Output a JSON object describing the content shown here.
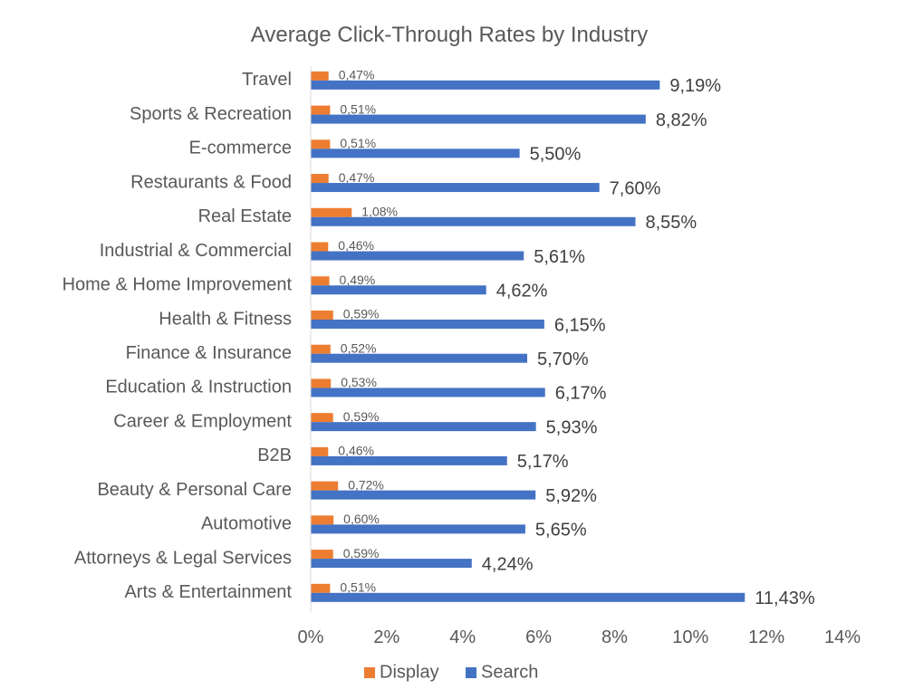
{
  "chart_data": {
    "type": "bar",
    "orientation": "horizontal",
    "title": "Average Click-Through Rates by Industry",
    "categories": [
      "Travel",
      "Sports & Recreation",
      "E-commerce",
      "Restaurants & Food",
      "Real Estate",
      "Industrial & Commercial",
      "Home & Home Improvement",
      "Health & Fitness",
      "Finance & Insurance",
      "Education & Instruction",
      "Career & Employment",
      "B2B",
      "Beauty & Personal Care",
      "Automotive",
      "Attorneys & Legal Services",
      "Arts & Entertainment"
    ],
    "series": [
      {
        "name": "Display",
        "color": "#ED7D31",
        "values": [
          0.47,
          0.51,
          0.51,
          0.47,
          1.08,
          0.46,
          0.49,
          0.59,
          0.52,
          0.53,
          0.59,
          0.46,
          0.72,
          0.6,
          0.59,
          0.51
        ],
        "labels": [
          "0,47%",
          "0,51%",
          "0,51%",
          "0,47%",
          "1,08%",
          "0,46%",
          "0,49%",
          "0,59%",
          "0,52%",
          "0,53%",
          "0,59%",
          "0,46%",
          "0,72%",
          "0,60%",
          "0,59%",
          "0,51%"
        ]
      },
      {
        "name": "Search",
        "color": "#4472C4",
        "values": [
          9.19,
          8.82,
          5.5,
          7.6,
          8.55,
          5.61,
          4.62,
          6.15,
          5.7,
          6.17,
          5.93,
          5.17,
          5.92,
          5.65,
          4.24,
          11.43
        ],
        "labels": [
          "9,19%",
          "8,82%",
          "5,50%",
          "7,60%",
          "8,55%",
          "5,61%",
          "4,62%",
          "6,15%",
          "5,70%",
          "6,17%",
          "5,93%",
          "5,17%",
          "5,92%",
          "5,65%",
          "4,24%",
          "11,43%"
        ]
      }
    ],
    "x_axis": {
      "min": 0,
      "max": 14,
      "step": 2,
      "tick_labels": [
        "0%",
        "2%",
        "4%",
        "6%",
        "8%",
        "10%",
        "12%",
        "14%"
      ]
    },
    "grid": false,
    "legend_position": "bottom",
    "axis_color": "#D9D9D9"
  }
}
